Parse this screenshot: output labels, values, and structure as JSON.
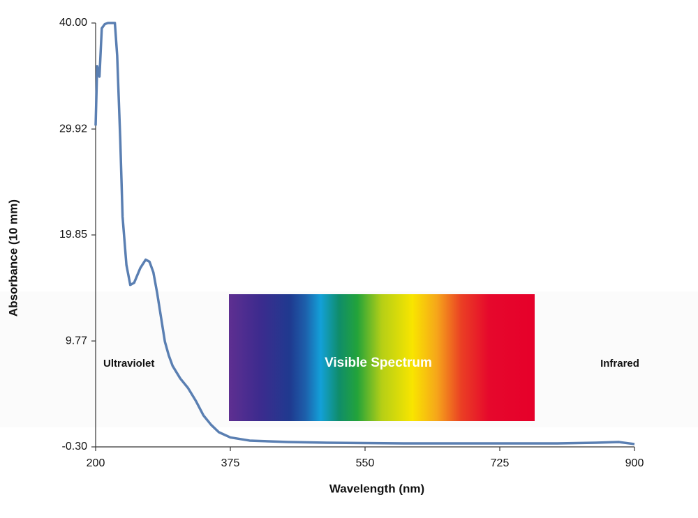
{
  "chart_data": {
    "type": "line",
    "x_label": "Wavelength (nm)",
    "y_label": "Absorbance (10 mm)",
    "x": [
      200,
      202,
      205,
      208,
      212,
      216,
      225,
      228,
      232,
      235,
      240,
      245,
      250,
      258,
      265,
      270,
      275,
      280,
      285,
      290,
      295,
      300,
      310,
      320,
      330,
      340,
      350,
      360,
      375,
      400,
      450,
      500,
      600,
      700,
      800,
      850,
      880,
      900
    ],
    "series": [
      {
        "name": "Absorbance",
        "color": "#5a7fb2",
        "values": [
          30.25,
          35.9,
          34.9,
          39.5,
          39.9,
          40,
          40,
          36.9,
          28.9,
          21.6,
          17.0,
          15.1,
          15.3,
          16.7,
          17.5,
          17.3,
          16.3,
          14.3,
          12.0,
          9.7,
          8.4,
          7.4,
          6.2,
          5.3,
          4.1,
          2.7,
          1.8,
          1.1,
          0.6,
          0.3,
          0.16,
          0.1,
          0.03,
          0.03,
          0.03,
          0.1,
          0.16,
          -0.03
        ]
      }
    ],
    "xlim": [
      200,
      900
    ],
    "ylim": [
      -0.3,
      40
    ],
    "xticks": [
      200,
      375,
      550,
      725,
      900
    ],
    "yticks": [
      {
        "value": -0.3,
        "label": "-0.30"
      },
      9.77,
      19.85,
      29.92,
      {
        "value": 40,
        "label": "40.00"
      }
    ],
    "annotations": [
      "Ultraviolet",
      "Visible Spectrum",
      "Infrared"
    ]
  }
}
